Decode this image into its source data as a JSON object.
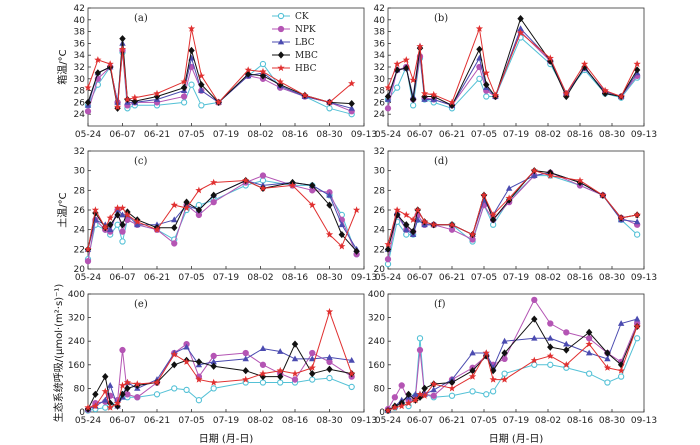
{
  "chart_data": [
    {
      "type": "line",
      "panel": "(a)",
      "x": [
        "05-24",
        "05-28",
        "06-02",
        "06-05",
        "06-07",
        "06-09",
        "06-12",
        "06-21",
        "07-02",
        "07-05",
        "07-09",
        "07-16",
        "07-28",
        "08-03",
        "08-10",
        "08-20",
        "08-30",
        "09-08"
      ],
      "xticks": [
        "05-24",
        "06-07",
        "06-21",
        "07-05",
        "07-19",
        "08-02",
        "08-16",
        "08-30",
        "09-13"
      ],
      "ylabel": "箱温/°C",
      "ylim": [
        22,
        42
      ],
      "yticks": [
        24,
        26,
        28,
        30,
        32,
        34,
        36,
        38,
        40,
        42
      ],
      "series": [
        {
          "name": "CK",
          "values": [
            25.5,
            29,
            32,
            26,
            34.5,
            25,
            25.5,
            25.5,
            26,
            29,
            25.5,
            26,
            30.5,
            32.5,
            28.5,
            27,
            25,
            24
          ]
        },
        {
          "name": "NPK",
          "values": [
            24.5,
            30,
            32,
            26,
            34.8,
            25.5,
            26,
            26,
            27,
            32,
            28,
            26,
            30.5,
            30,
            28.5,
            27,
            26,
            24.5
          ]
        },
        {
          "name": "LBC",
          "values": [
            25.5,
            31,
            32,
            26,
            36,
            26,
            26,
            26.5,
            28,
            33.5,
            28,
            26,
            30.5,
            31,
            28.8,
            27,
            26,
            25
          ]
        },
        {
          "name": "MBC",
          "values": [
            26,
            31,
            32,
            25,
            36.8,
            26.5,
            26.2,
            27,
            28.5,
            34.8,
            29,
            26,
            30.8,
            30.5,
            29,
            27.2,
            26,
            25.8
          ]
        },
        {
          "name": "HBC",
          "values": [
            28.5,
            33.2,
            32.5,
            25.2,
            35,
            26.5,
            26.8,
            27.5,
            29.5,
            38.5,
            30.5,
            26,
            31.5,
            31.2,
            29.5,
            27.2,
            26,
            29.2
          ]
        }
      ]
    },
    {
      "type": "line",
      "panel": "(b)",
      "x": [
        "05-24",
        "05-28",
        "06-01",
        "06-04",
        "06-07",
        "06-09",
        "06-13",
        "06-21",
        "07-03",
        "07-06",
        "07-10",
        "07-21",
        "08-03",
        "08-10",
        "08-18",
        "08-27",
        "09-03",
        "09-10"
      ],
      "xticks": [
        "05-24",
        "06-07",
        "06-21",
        "07-05",
        "07-19",
        "08-02",
        "08-16",
        "08-30",
        "09-13"
      ],
      "ylabel": "",
      "ylim": [
        22,
        42
      ],
      "yticks": [
        24,
        26,
        28,
        30,
        32,
        34,
        36,
        38,
        40,
        42
      ],
      "series": [
        {
          "name": "CK",
          "values": [
            26.5,
            28.5,
            32,
            25.5,
            33.5,
            26.5,
            26,
            25,
            30,
            27,
            27,
            37,
            32.5,
            27.5,
            31.5,
            27.5,
            26.8,
            30.2
          ]
        },
        {
          "name": "NPK",
          "values": [
            25,
            31.5,
            32,
            26.5,
            33.8,
            26.8,
            26.5,
            25.5,
            32,
            28,
            27,
            38,
            33,
            27.5,
            31.8,
            27.8,
            27,
            30.5
          ]
        },
        {
          "name": "LBC",
          "values": [
            26.5,
            31.5,
            31.8,
            27,
            35.5,
            26.5,
            26.5,
            25.5,
            33.5,
            28.5,
            27,
            38.5,
            33.2,
            27.5,
            31.8,
            27.8,
            27,
            31
          ]
        },
        {
          "name": "MBC",
          "values": [
            27,
            31.5,
            31.8,
            26.5,
            35.2,
            27,
            27,
            25.5,
            35,
            29,
            27,
            40.2,
            33,
            27,
            32,
            27.5,
            27,
            31.5
          ]
        },
        {
          "name": "HBC",
          "values": [
            28.5,
            32.5,
            33.2,
            29.8,
            35.5,
            27.5,
            27.3,
            26,
            38.5,
            31,
            27.2,
            37.8,
            33.5,
            27.5,
            32.5,
            28,
            27,
            32.5
          ]
        }
      ]
    },
    {
      "type": "line",
      "panel": "(c)",
      "x": [
        "05-24",
        "05-27",
        "05-31",
        "06-02",
        "06-05",
        "06-07",
        "06-09",
        "06-13",
        "06-21",
        "06-28",
        "07-03",
        "07-08",
        "07-14",
        "07-27",
        "08-03",
        "08-15",
        "08-23",
        "08-30",
        "09-04",
        "09-10"
      ],
      "xticks": [
        "05-24",
        "06-07",
        "06-21",
        "07-05",
        "07-19",
        "08-02",
        "08-16",
        "08-30",
        "09-13"
      ],
      "ylabel": "土温/°C",
      "ylim": [
        20,
        32
      ],
      "yticks": [
        20,
        22,
        24,
        26,
        28,
        30,
        32
      ],
      "series": [
        {
          "name": "CK",
          "values": [
            21,
            24.5,
            24,
            23.5,
            24.5,
            22.8,
            25,
            24.5,
            24,
            23,
            26,
            26.5,
            27,
            28.5,
            29,
            28.5,
            28.5,
            27.5,
            25.5,
            21.5
          ]
        },
        {
          "name": "NPK",
          "values": [
            20.8,
            25,
            24,
            23.8,
            26,
            23.8,
            25,
            24.5,
            24,
            22.6,
            26.5,
            25.5,
            26.8,
            28.8,
            29.5,
            28.5,
            28,
            27.8,
            25,
            21.5
          ]
        },
        {
          "name": "LBC",
          "values": [
            22,
            25,
            24.5,
            24,
            26,
            25.5,
            25.5,
            24.5,
            24.5,
            25,
            26.5,
            26,
            27.5,
            29,
            28.5,
            28.8,
            28.5,
            27.5,
            24.5,
            22
          ]
        },
        {
          "name": "MBC",
          "values": [
            22,
            25.7,
            24.2,
            24.5,
            25.5,
            24.5,
            25.8,
            25,
            24.2,
            24.2,
            26.8,
            26,
            27.5,
            29,
            28.2,
            28.8,
            28.5,
            26.5,
            23.5,
            21.8
          ]
        },
        {
          "name": "HBC",
          "values": [
            22,
            26,
            24.2,
            25.2,
            26.2,
            26.2,
            25.5,
            24.8,
            24,
            26.5,
            26.2,
            28,
            28.8,
            29,
            28.2,
            28.5,
            26.5,
            23.5,
            22.3,
            26
          ]
        }
      ]
    },
    {
      "type": "line",
      "panel": "(d)",
      "x": [
        "05-24",
        "05-28",
        "06-01",
        "06-04",
        "06-06",
        "06-09",
        "06-13",
        "06-21",
        "06-30",
        "07-05",
        "07-09",
        "07-16",
        "07-27",
        "08-03",
        "08-16",
        "08-26",
        "09-03",
        "09-10"
      ],
      "xticks": [
        "05-24",
        "06-07",
        "06-21",
        "07-05",
        "07-19",
        "08-02",
        "08-16",
        "08-30",
        "09-13"
      ],
      "ylabel": "",
      "ylim": [
        20,
        32
      ],
      "yticks": [
        20,
        22,
        24,
        26,
        28,
        30,
        32
      ],
      "series": [
        {
          "name": "CK",
          "values": [
            20.5,
            24.8,
            23.5,
            23.5,
            25,
            24.5,
            24.5,
            24.5,
            22.8,
            26.5,
            24.5,
            27,
            29.5,
            29.5,
            28.5,
            27.5,
            25,
            23.5
          ]
        },
        {
          "name": "NPK",
          "values": [
            21,
            25.5,
            24,
            23.8,
            25.5,
            24.5,
            24.5,
            24,
            23,
            26.5,
            25,
            26.8,
            29.5,
            29.8,
            28.5,
            27.5,
            25.2,
            24.5
          ]
        },
        {
          "name": "LBC",
          "values": [
            22,
            25.8,
            24,
            23.5,
            25,
            24.5,
            24.5,
            24.5,
            23.5,
            27,
            25.5,
            28.2,
            29.5,
            29.8,
            28.8,
            27.5,
            25,
            24.8
          ]
        },
        {
          "name": "MBC",
          "values": [
            22,
            25.5,
            24.5,
            23.8,
            26,
            24.8,
            24.5,
            24.5,
            23.5,
            27.5,
            25,
            27,
            30,
            29.8,
            28.8,
            27.5,
            25.2,
            25.5
          ]
        },
        {
          "name": "HBC",
          "values": [
            22.5,
            26,
            25.5,
            25,
            26,
            24.8,
            24.5,
            24.5,
            23.5,
            27.5,
            25.5,
            27.2,
            30,
            29.5,
            29,
            27.5,
            25.2,
            25.5
          ]
        }
      ]
    },
    {
      "type": "line",
      "panel": "(e)",
      "x": [
        "05-24",
        "05-27",
        "05-31",
        "06-02",
        "06-05",
        "06-07",
        "06-09",
        "06-13",
        "06-21",
        "06-28",
        "07-03",
        "07-08",
        "07-14",
        "07-27",
        "08-03",
        "08-10",
        "08-16",
        "08-23",
        "08-30",
        "09-08"
      ],
      "xticks": [
        "05-24",
        "06-07",
        "06-21",
        "07-05",
        "07-19",
        "08-02",
        "08-16",
        "08-30",
        "09-13"
      ],
      "ylabel": "生态系统呼吸/(μmol·(m²·s)⁻¹)",
      "ylim": [
        0,
        400
      ],
      "yticks": [
        0,
        80,
        160,
        240,
        320,
        400
      ],
      "series": [
        {
          "name": "CK",
          "values": [
            5,
            10,
            15,
            20,
            40,
            60,
            50,
            50,
            60,
            80,
            75,
            40,
            80,
            100,
            100,
            100,
            100,
            110,
            115,
            85
          ]
        },
        {
          "name": "NPK",
          "values": [
            8,
            30,
            35,
            55,
            40,
            210,
            60,
            50,
            100,
            200,
            230,
            120,
            190,
            200,
            160,
            130,
            110,
            200,
            170,
            120
          ]
        },
        {
          "name": "LBC",
          "values": [
            10,
            20,
            40,
            90,
            20,
            50,
            100,
            80,
            110,
            200,
            220,
            160,
            170,
            180,
            215,
            205,
            180,
            180,
            185,
            175
          ]
        },
        {
          "name": "MBC",
          "values": [
            10,
            60,
            120,
            30,
            20,
            60,
            80,
            90,
            100,
            160,
            175,
            170,
            155,
            140,
            120,
            120,
            230,
            130,
            145,
            130
          ]
        },
        {
          "name": "HBC",
          "values": [
            15,
            20,
            70,
            15,
            30,
            90,
            100,
            95,
            100,
            195,
            170,
            110,
            100,
            110,
            130,
            140,
            130,
            150,
            340,
            130
          ]
        }
      ]
    },
    {
      "type": "line",
      "panel": "(f)",
      "x": [
        "05-24",
        "05-27",
        "05-30",
        "06-02",
        "06-05",
        "06-07",
        "06-09",
        "06-13",
        "06-21",
        "06-30",
        "07-06",
        "07-09",
        "07-14",
        "07-27",
        "08-03",
        "08-10",
        "08-20",
        "08-28",
        "09-03",
        "09-10"
      ],
      "xticks": [
        "05-24",
        "06-07",
        "06-21",
        "07-05",
        "07-19",
        "08-02",
        "08-16",
        "08-30",
        "09-13"
      ],
      "ylabel": "",
      "ylim": [
        0,
        400
      ],
      "yticks": [
        0,
        80,
        160,
        240,
        320,
        400
      ],
      "series": [
        {
          "name": "CK",
          "values": [
            5,
            15,
            30,
            20,
            55,
            250,
            60,
            50,
            55,
            70,
            60,
            70,
            130,
            160,
            160,
            150,
            130,
            100,
            120,
            250
          ]
        },
        {
          "name": "NPK",
          "values": [
            10,
            50,
            90,
            40,
            50,
            210,
            60,
            55,
            110,
            150,
            190,
            160,
            180,
            380,
            300,
            270,
            250,
            200,
            170,
            300
          ]
        },
        {
          "name": "LBC",
          "values": [
            5,
            20,
            40,
            50,
            60,
            60,
            60,
            75,
            110,
            200,
            200,
            150,
            240,
            250,
            250,
            230,
            200,
            180,
            300,
            315
          ]
        },
        {
          "name": "MBC",
          "values": [
            5,
            20,
            30,
            60,
            40,
            50,
            80,
            95,
            100,
            140,
            190,
            140,
            200,
            315,
            220,
            210,
            270,
            200,
            160,
            290
          ]
        },
        {
          "name": "HBC",
          "values": [
            5,
            15,
            20,
            30,
            40,
            60,
            55,
            95,
            80,
            120,
            200,
            110,
            110,
            175,
            190,
            160,
            230,
            150,
            140,
            290
          ]
        }
      ]
    }
  ],
  "legend": {
    "items": [
      "CK",
      "NPK",
      "LBC",
      "MBC",
      "HBC"
    ],
    "colors": {
      "CK": "#54c1d6",
      "NPK": "#b455b4",
      "LBC": "#4b4bb0",
      "MBC": "#111111",
      "HBC": "#e03030"
    },
    "markers": {
      "CK": "circle",
      "NPK": "circle",
      "LBC": "triangle",
      "MBC": "diamond",
      "HBC": "star"
    }
  },
  "xlabel": "日期 (月-日)"
}
